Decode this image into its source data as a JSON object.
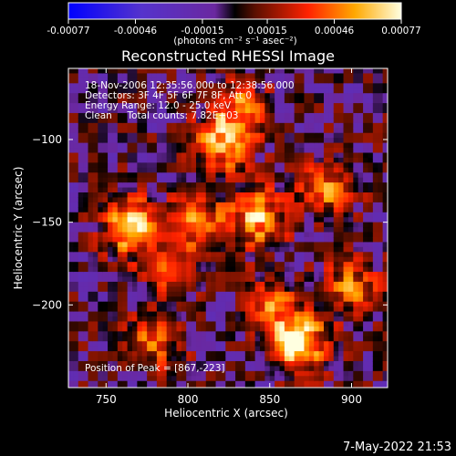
{
  "colorbar": {
    "ticks": [
      "-0.00077",
      "-0.00046",
      "-0.00015",
      "0.00015",
      "0.00046",
      "0.00077"
    ],
    "tick_values": [
      -0.00077,
      -0.00046,
      -0.00015,
      0.00015,
      0.00046,
      0.00077
    ],
    "range": [
      -0.00077,
      0.00077
    ],
    "unit_label": "(photons cm⁻² s⁻¹ asec⁻²)"
  },
  "chart_data": {
    "type": "heatmap",
    "title": "Reconstructed RHESSI Image",
    "xlabel": "Heliocentric X (arcsec)",
    "ylabel": "Heliocentric Y (arcsec)",
    "xlim": [
      727,
      922
    ],
    "ylim": [
      -250,
      -57
    ],
    "x_ticks": [
      750,
      800,
      850,
      900
    ],
    "y_ticks": [
      -100,
      -150,
      -200
    ],
    "annotations": [
      "18-Nov-2006 12:35:56.000 to 12:38:56.000",
      "Detectors: 3F 4F 5F 6F 7F 8F, Att 0",
      "Energy Range: 12.0 - 25.0 keV",
      "Clean     Total counts: 7.82E+03"
    ],
    "peak_label": "Position of Peak = [867,-223]",
    "peak": [
      867,
      -223
    ],
    "sources": [
      {
        "x": 765,
        "y": -152,
        "intensity": 0.0007
      },
      {
        "x": 867,
        "y": -223,
        "intensity": 0.00077
      },
      {
        "x": 843,
        "y": -148,
        "intensity": 0.00062
      },
      {
        "x": 820,
        "y": -103,
        "intensity": 0.00058
      },
      {
        "x": 805,
        "y": -150,
        "intensity": 0.0005
      },
      {
        "x": 832,
        "y": -82,
        "intensity": 0.00045
      },
      {
        "x": 885,
        "y": -130,
        "intensity": 0.00048
      },
      {
        "x": 900,
        "y": -190,
        "intensity": 0.00046
      },
      {
        "x": 790,
        "y": -180,
        "intensity": 0.0004
      },
      {
        "x": 780,
        "y": -222,
        "intensity": 0.00042
      },
      {
        "x": 852,
        "y": -200,
        "intensity": 0.0004
      }
    ]
  },
  "footer": {
    "timestamp": "7-May-2022 21:53"
  }
}
